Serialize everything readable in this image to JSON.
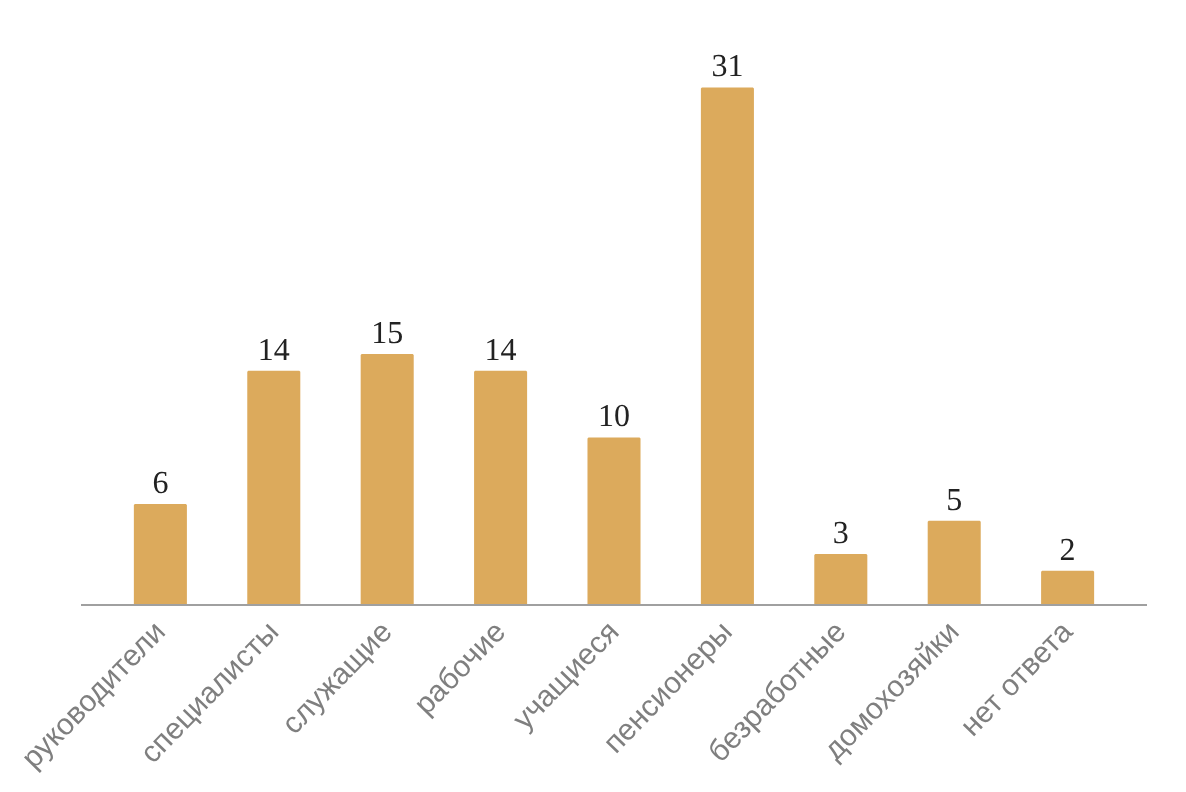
{
  "chart_data": {
    "type": "bar",
    "categories": [
      "руководители",
      "специалисты",
      "служащие",
      "рабочие",
      "учащиеся",
      "пенсионеры",
      "безработные",
      "домохозяйки",
      "нет ответа"
    ],
    "values": [
      6,
      14,
      15,
      14,
      10,
      31,
      3,
      5,
      2
    ],
    "color": "#dcaa5c",
    "data_labels": true,
    "grid": false,
    "tick_labels": "x"
  }
}
